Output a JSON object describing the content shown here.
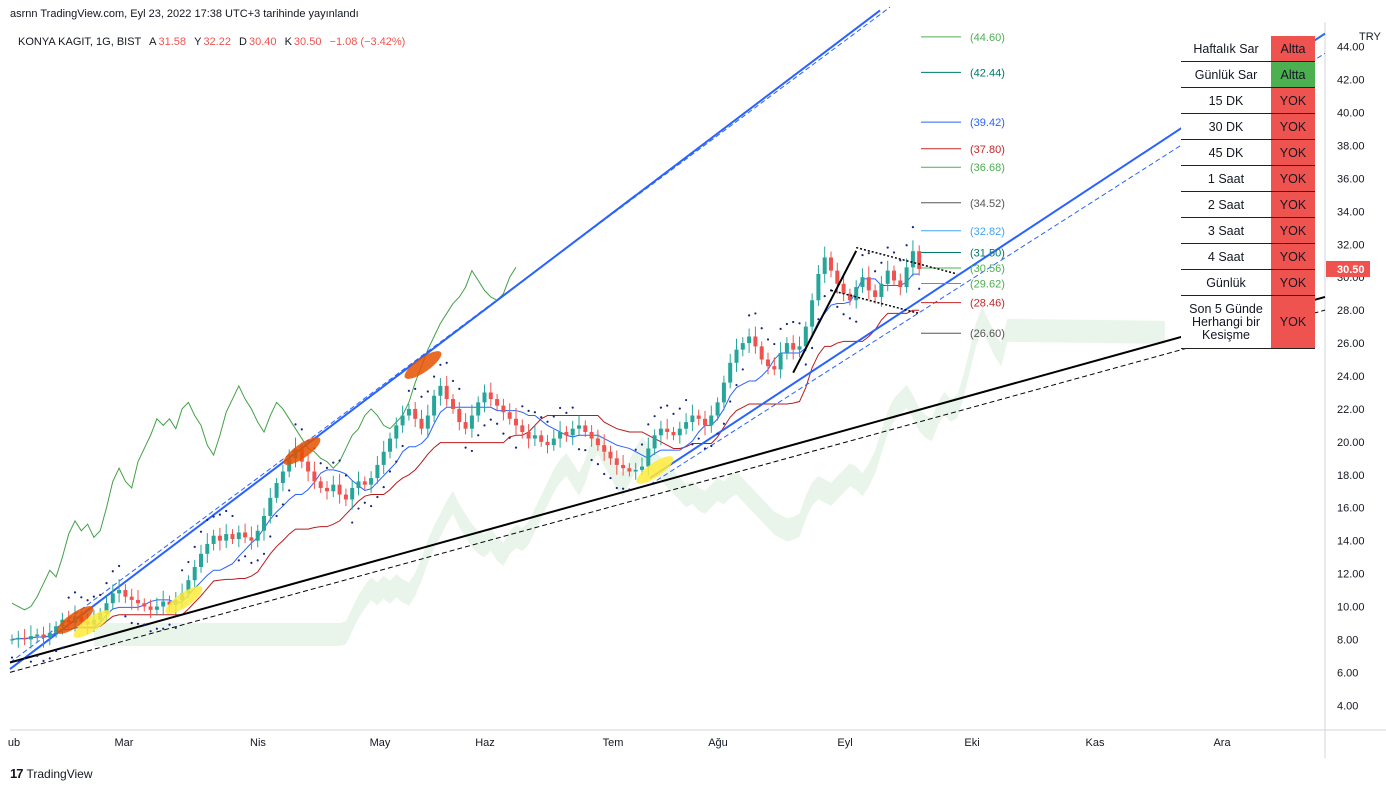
{
  "header": {
    "published": "asrnn TradingView.com, Eyl 23, 2022 17:38 UTC+3 tarihinde yayınlandı",
    "symbol": "KONYA KAGIT, 1G, BIST",
    "open_label": "A",
    "open": "31.58",
    "high_label": "Y",
    "high": "32.22",
    "low_label": "D",
    "low": "30.40",
    "close_label": "K",
    "close": "30.50",
    "change": "−1.08 (−3.42%)"
  },
  "footer": {
    "brand": "TradingView",
    "logo": "17"
  },
  "signal_table": {
    "rows": [
      {
        "name": "Haftalık Sar",
        "value": "Altta",
        "color": "#ef5350"
      },
      {
        "name": "Günlük Sar",
        "value": "Altta",
        "color": "#4caf50"
      },
      {
        "name": "15 DK",
        "value": "YOK",
        "color": "#ef5350"
      },
      {
        "name": "30 DK",
        "value": "YOK",
        "color": "#ef5350"
      },
      {
        "name": "45 DK",
        "value": "YOK",
        "color": "#ef5350"
      },
      {
        "name": "1 Saat",
        "value": "YOK",
        "color": "#ef5350"
      },
      {
        "name": "2 Saat",
        "value": "YOK",
        "color": "#ef5350"
      },
      {
        "name": "3 Saat",
        "value": "YOK",
        "color": "#ef5350"
      },
      {
        "name": "4 Saat",
        "value": "YOK",
        "color": "#ef5350"
      },
      {
        "name": "Günlük",
        "value": "YOK",
        "color": "#ef5350"
      },
      {
        "name": "Son 5 Günde Herhangi bir Kesişme",
        "value": "YOK",
        "color": "#ef5350",
        "tall": true
      }
    ]
  },
  "chart_data": {
    "type": "candlestick",
    "currency": "TRY",
    "last_price": "30.50",
    "ylim": [
      2.5,
      45.5
    ],
    "y_ticks": [
      4,
      6,
      8,
      10,
      12,
      14,
      16,
      18,
      20,
      22,
      24,
      26,
      28,
      30,
      32,
      34,
      36,
      38,
      40,
      42,
      44
    ],
    "x_labels": [
      "ub",
      "Mar",
      "Nis",
      "May",
      "Haz",
      "Tem",
      "Ağu",
      "Eyl",
      "Eki",
      "Kas",
      "Ara"
    ],
    "colors": {
      "up": "#26a69a",
      "down": "#ef5350",
      "channel": "#2962ff",
      "trend": "#000000",
      "chikou": "#43a047",
      "kijun": "#b71c1c",
      "tenkan": "#2962ff"
    },
    "price_levels": [
      {
        "value": 44.6,
        "label": "(44.60)",
        "color": "#4caf50"
      },
      {
        "value": 42.44,
        "label": "(42.44)",
        "color": "#00796b"
      },
      {
        "value": 39.42,
        "label": "(39.42)",
        "color": "#2962ff"
      },
      {
        "value": 37.8,
        "label": "(37.80)",
        "color": "#c62828"
      },
      {
        "value": 36.68,
        "label": "(36.68)",
        "color": "#4caf50"
      },
      {
        "value": 34.52,
        "label": "(34.52)",
        "color": "#555555"
      },
      {
        "value": 32.82,
        "label": "(32.82)",
        "color": "#42a5f5"
      },
      {
        "value": 31.5,
        "label": "(31.50)",
        "color": "#00796b"
      },
      {
        "value": 30.56,
        "label": "(30.56)",
        "color": "#4caf50"
      },
      {
        "value": 29.62,
        "label": "(29.62)",
        "color": "#4caf50"
      },
      {
        "value": 28.46,
        "label": "(28.46)",
        "color": "#c62828"
      },
      {
        "value": 26.6,
        "label": "(26.60)",
        "color": "#555555"
      }
    ],
    "close_series": [
      8.0,
      8.1,
      8.0,
      8.2,
      8.3,
      8.1,
      8.4,
      8.8,
      9.2,
      9.0,
      9.4,
      9.1,
      8.9,
      9.2,
      9.6,
      10.2,
      10.8,
      11.0,
      10.6,
      10.4,
      10.2,
      10.0,
      9.8,
      10.0,
      10.3,
      10.1,
      10.4,
      10.8,
      11.6,
      12.4,
      13.2,
      13.8,
      14.3,
      14.0,
      14.4,
      14.1,
      14.5,
      14.2,
      14.0,
      14.6,
      15.5,
      16.6,
      17.5,
      18.2,
      19.0,
      19.6,
      18.8,
      18.2,
      17.6,
      17.2,
      17.0,
      17.4,
      16.8,
      16.5,
      17.2,
      17.6,
      17.4,
      17.8,
      18.6,
      19.4,
      20.2,
      21.0,
      21.6,
      22.0,
      21.4,
      20.8,
      21.6,
      22.8,
      23.4,
      22.6,
      22.0,
      21.2,
      20.8,
      21.6,
      22.4,
      23.0,
      22.6,
      22.2,
      21.8,
      21.4,
      21.0,
      20.6,
      20.2,
      20.4,
      20.0,
      19.8,
      20.2,
      20.6,
      20.4,
      20.8,
      21.0,
      20.6,
      20.2,
      19.8,
      19.4,
      19.0,
      18.6,
      18.4,
      18.2,
      18.3,
      18.5,
      19.6,
      20.4,
      20.8,
      20.6,
      20.4,
      20.8,
      21.2,
      21.6,
      21.4,
      21.0,
      21.6,
      22.4,
      23.6,
      24.8,
      25.6,
      26.0,
      26.4,
      25.8,
      25.0,
      24.6,
      24.4,
      25.4,
      26.0,
      25.6,
      25.8,
      27.0,
      28.6,
      30.2,
      31.2,
      30.4,
      29.6,
      29.0,
      28.6,
      29.4,
      30.0,
      29.2,
      28.8,
      29.6,
      30.4,
      29.8,
      29.4,
      30.6,
      31.58,
      30.5
    ],
    "chikou_series": [
      10.2,
      10.0,
      9.8,
      10.0,
      10.6,
      11.4,
      12.2,
      11.8,
      13.0,
      14.4,
      15.2,
      14.6,
      15.0,
      14.2,
      14.6,
      16.0,
      17.6,
      18.4,
      17.6,
      17.2,
      18.8,
      19.6,
      20.4,
      21.4,
      21.0,
      21.4,
      20.8,
      22.0,
      22.4,
      21.6,
      21.0,
      19.8,
      19.2,
      20.4,
      21.8,
      22.6,
      23.4,
      22.6,
      22.0,
      21.2,
      20.6,
      21.6,
      22.4,
      22.0,
      21.4,
      20.8,
      20.2,
      19.6,
      19.4,
      19.0,
      18.8,
      18.4,
      18.8,
      19.6,
      20.4,
      20.8,
      21.6,
      22.0,
      21.6,
      21.0,
      20.8,
      21.2,
      21.6,
      22.4,
      23.6,
      24.6,
      25.6,
      26.4,
      27.2,
      27.8,
      28.4,
      28.8,
      29.4,
      30.4,
      29.8,
      29.2,
      28.8,
      28.6,
      29.0,
      30.0,
      30.6
    ]
  }
}
